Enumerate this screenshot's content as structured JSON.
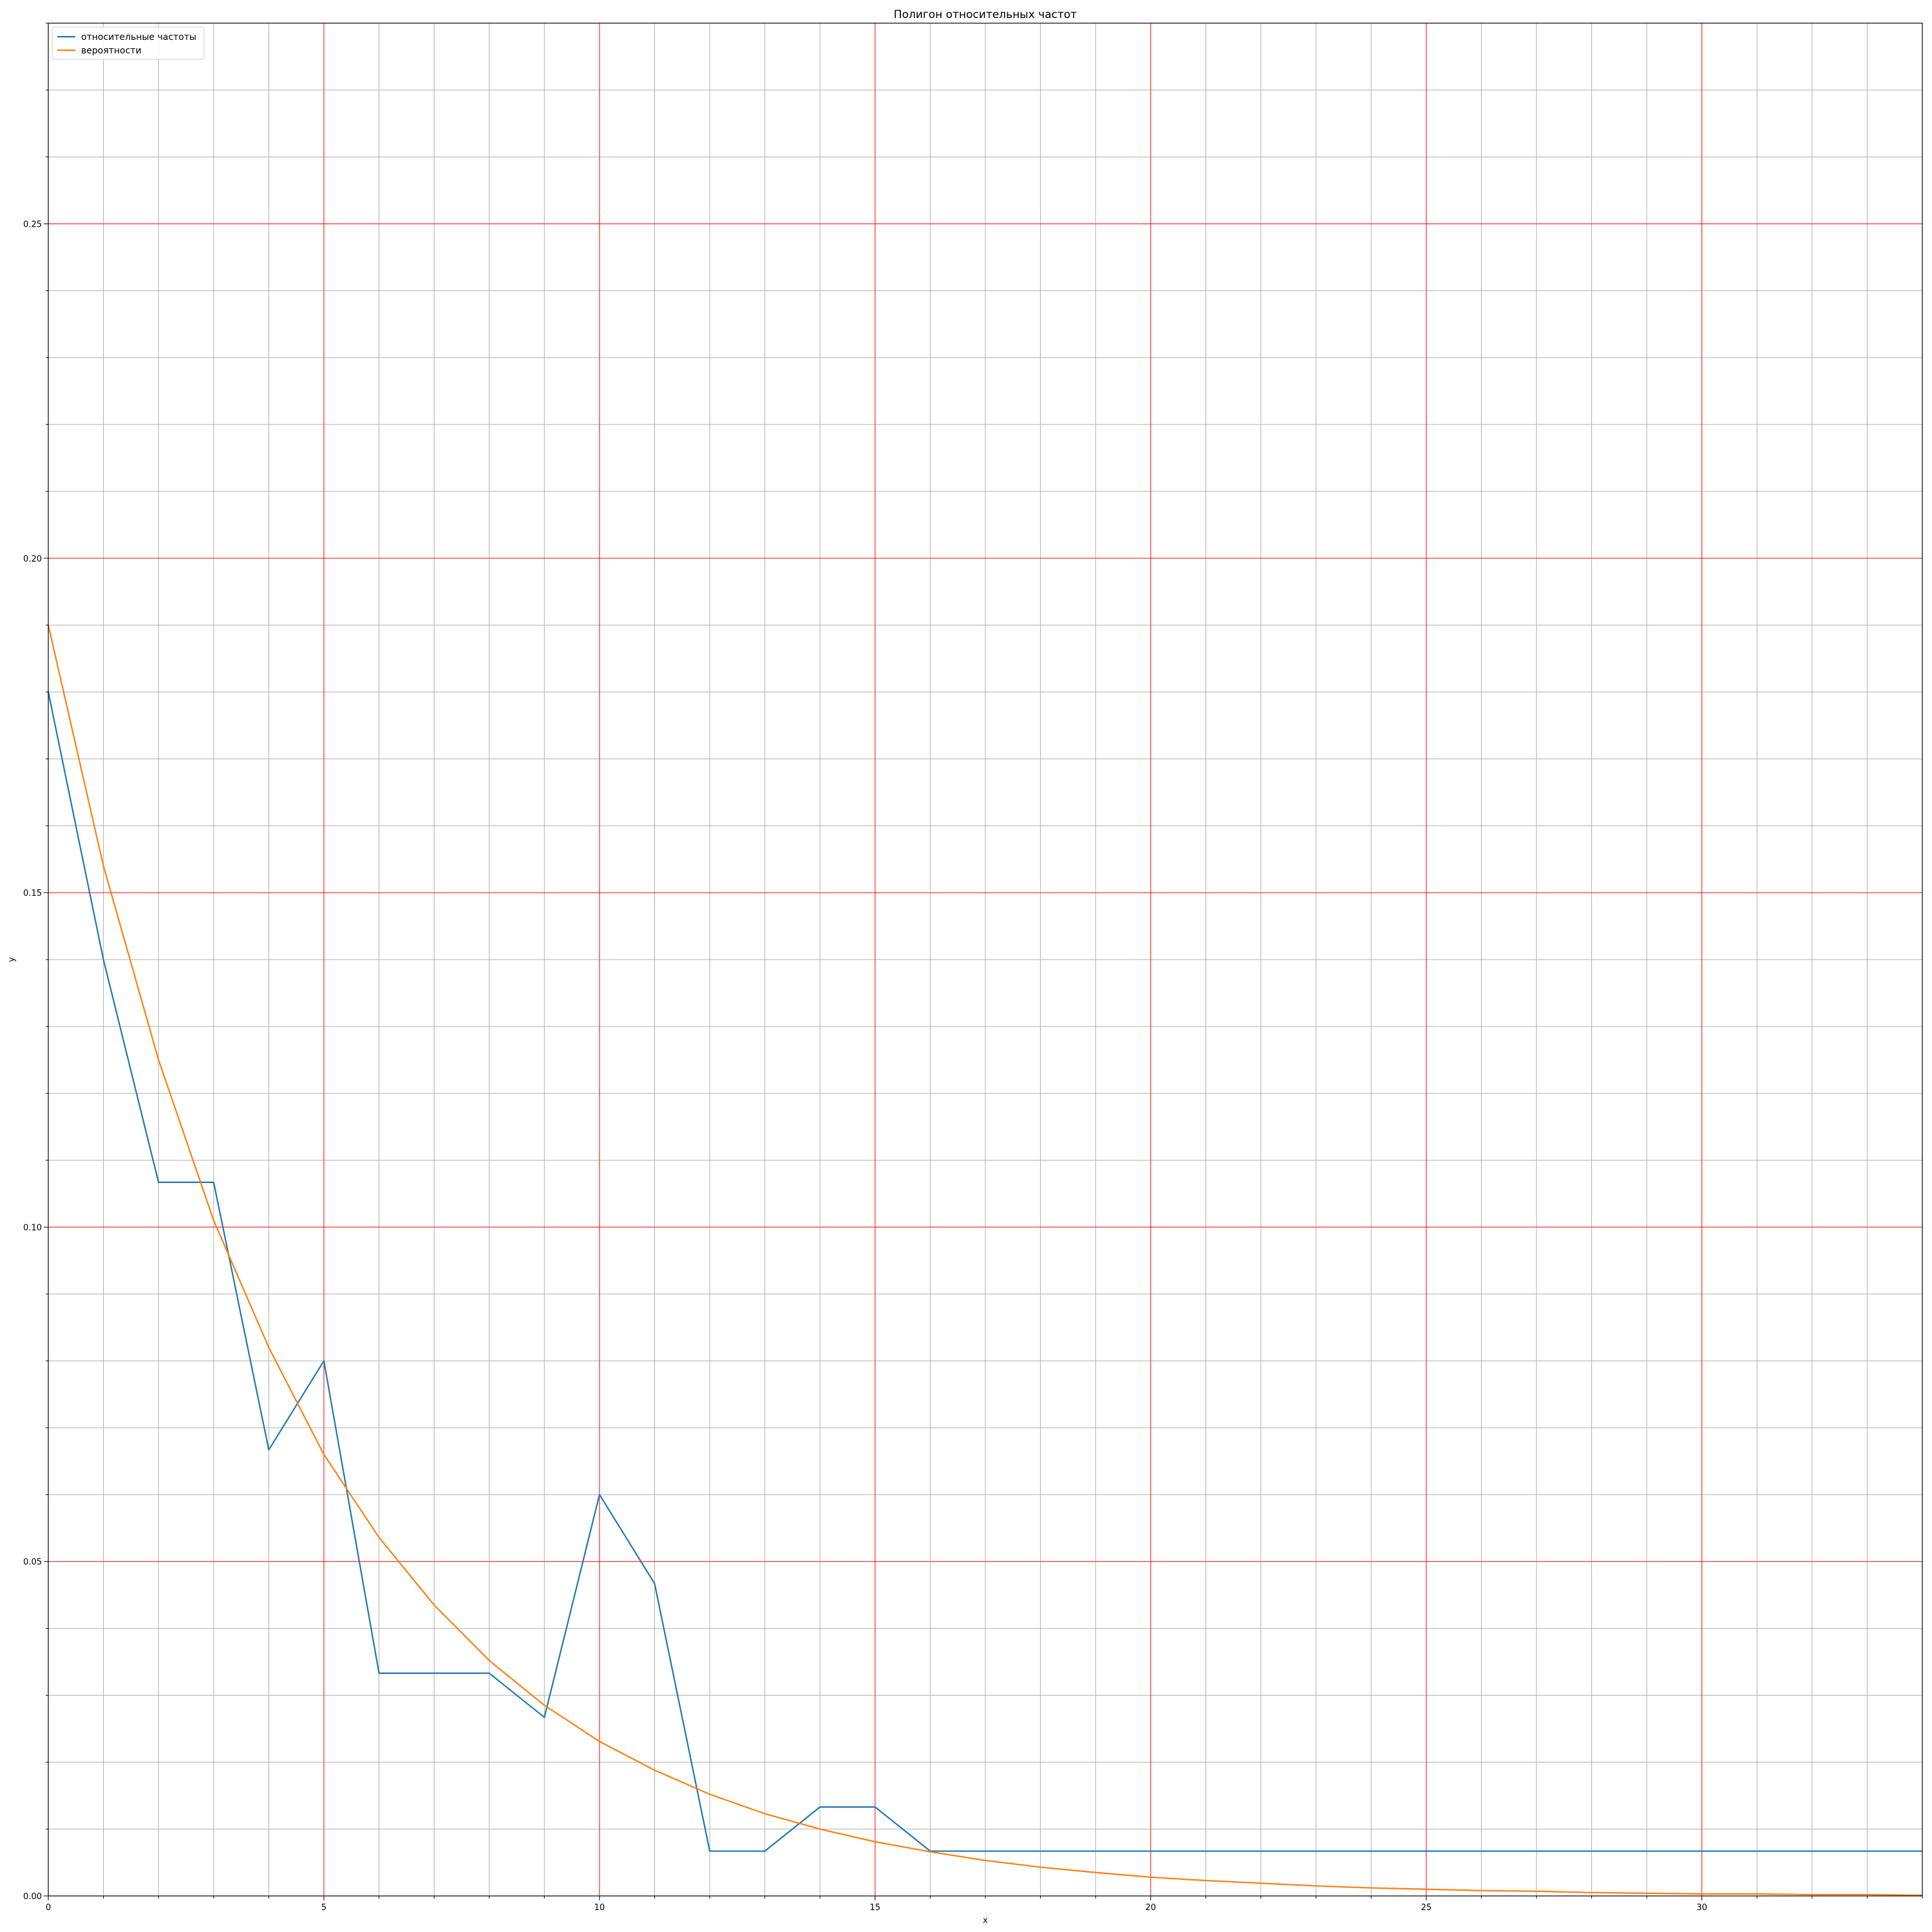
{
  "chart_data": {
    "type": "line",
    "title": "Полигон относительных частот",
    "xlabel": "x",
    "ylabel": "y",
    "xlim": [
      0,
      34
    ],
    "ylim": [
      0,
      0.28
    ],
    "x_major_ticks": [
      0,
      5,
      10,
      15,
      20,
      25,
      30
    ],
    "x_tick_labels": [
      "0",
      "5",
      "10",
      "15",
      "20",
      "25",
      "30"
    ],
    "y_major_ticks": [
      0,
      0.05,
      0.1,
      0.15,
      0.2,
      0.25
    ],
    "y_tick_labels": [
      "0.00",
      "0.05",
      "0.10",
      "0.15",
      "0.20",
      "0.25"
    ],
    "x_minor_step": 1,
    "y_minor_step": 0.01,
    "grid": "on",
    "major_grid_color": "#ff0000",
    "minor_grid_color": "#b0b0b0",
    "legend_position": "top-left",
    "series": [
      {
        "name": "относительные частоты",
        "color": "#1f77b4",
        "x": [
          0,
          1,
          2,
          3,
          4,
          5,
          6,
          7,
          8,
          9,
          10,
          11,
          12,
          13,
          14,
          15,
          16,
          17,
          18,
          19,
          20,
          21,
          22,
          23,
          24,
          25,
          26,
          27,
          28,
          29,
          30,
          31,
          32,
          33,
          34
        ],
        "values": [
          0.18,
          0.14,
          0.1067,
          0.1067,
          0.0667,
          0.08,
          0.0333,
          0.0333,
          0.0333,
          0.0267,
          0.06,
          0.0467,
          0.0067,
          0.0067,
          0.0133,
          0.0133,
          0.0067,
          0.0067,
          0.0067,
          0.0067,
          0.0067,
          0.0067,
          0.0067,
          0.0067,
          0.0067,
          0.0067,
          0.0067,
          0.0067,
          0.0067,
          0.0067,
          0.0067,
          0.0067,
          0.0067,
          0.0067,
          0.0067
        ]
      },
      {
        "name": "вероятности",
        "color": "#ff7f0e",
        "x": [
          0,
          1,
          2,
          3,
          4,
          5,
          6,
          7,
          8,
          9,
          10,
          11,
          12,
          13,
          14,
          15,
          16,
          17,
          18,
          19,
          20,
          21,
          22,
          23,
          24,
          25,
          26,
          27,
          28,
          29,
          30,
          31,
          32,
          33,
          34
        ],
        "values": [
          0.19,
          0.154,
          0.125,
          0.101,
          0.082,
          0.066,
          0.0536,
          0.0435,
          0.0352,
          0.0285,
          0.0231,
          0.0188,
          0.0152,
          0.0123,
          0.01,
          0.0081,
          0.0066,
          0.0053,
          0.0043,
          0.0035,
          0.0028,
          0.0023,
          0.0019,
          0.0015,
          0.0012,
          0.001,
          0.0008,
          0.0007,
          0.0005,
          0.0004,
          0.0003,
          0.0003,
          0.0002,
          0.0002,
          0.0001
        ]
      }
    ]
  }
}
